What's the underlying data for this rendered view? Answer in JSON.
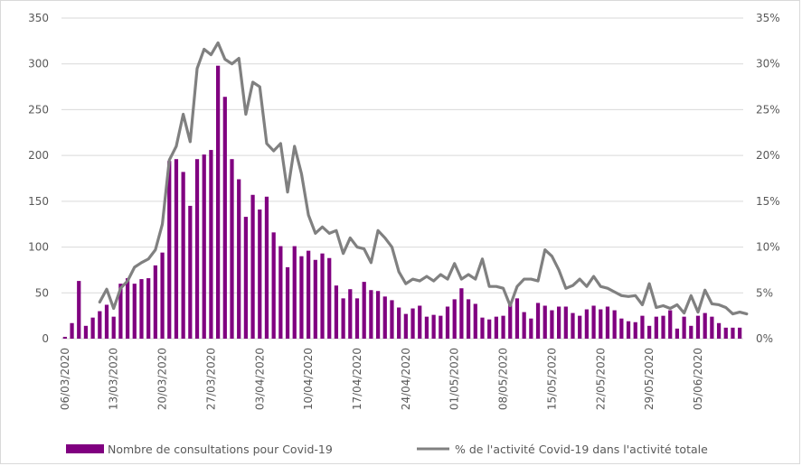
{
  "chart_data": {
    "type": "bar+line",
    "title": "",
    "colors": {
      "bars": "#800080",
      "line": "#808080",
      "grid": "#d9d9d9",
      "text": "#595959"
    },
    "grid": true,
    "legend_position": "bottom",
    "y_left": {
      "min": 0,
      "max": 350,
      "ticks": [
        "0",
        "50",
        "100",
        "150",
        "200",
        "250",
        "300",
        "350"
      ]
    },
    "y_right": {
      "min": 0,
      "max": 0.35,
      "ticks": [
        "0%",
        "5%",
        "10%",
        "15%",
        "20%",
        "25%",
        "30%",
        "35%"
      ]
    },
    "x_tick_labels": [
      "06/03/2020",
      "13/03/2020",
      "20/03/2020",
      "27/03/2020",
      "03/04/2020",
      "10/04/2020",
      "17/04/2020",
      "24/04/2020",
      "01/05/2020",
      "08/05/2020",
      "15/05/2020",
      "22/05/2020",
      "29/05/2020",
      "05/06/2020"
    ],
    "series": [
      {
        "name": "Nombre de consultations pour Covid-19",
        "type": "bar",
        "axis": "left",
        "values": [
          2,
          17,
          63,
          14,
          23,
          30,
          37,
          24,
          60,
          66,
          60,
          65,
          66,
          80,
          94,
          194,
          196,
          182,
          145,
          196,
          201,
          206,
          298,
          264,
          196,
          174,
          133,
          157,
          141,
          155,
          116,
          101,
          78,
          101,
          90,
          96,
          86,
          93,
          88,
          58,
          44,
          54,
          44,
          62,
          53,
          52,
          46,
          42,
          34,
          27,
          33,
          36,
          24,
          26,
          25,
          35,
          43,
          55,
          43,
          38,
          23,
          21,
          24,
          25,
          40,
          44,
          29,
          22,
          39,
          36,
          31,
          35,
          35,
          28,
          25,
          32,
          36,
          32,
          35,
          31,
          22,
          19,
          18,
          25,
          14,
          24,
          25,
          31,
          11,
          24,
          14,
          25,
          28,
          24,
          17,
          12,
          12,
          12
        ]
      },
      {
        "name": "% de l'activité Covid-19 dans l'activité totale",
        "type": "line",
        "axis": "right",
        "start_index": 5,
        "values": [
          0.04,
          0.054,
          0.033,
          0.055,
          0.063,
          0.078,
          0.083,
          0.087,
          0.097,
          0.125,
          0.195,
          0.21,
          0.245,
          0.215,
          0.295,
          0.316,
          0.31,
          0.323,
          0.305,
          0.3,
          0.306,
          0.245,
          0.28,
          0.275,
          0.213,
          0.205,
          0.213,
          0.16,
          0.21,
          0.18,
          0.135,
          0.115,
          0.122,
          0.115,
          0.118,
          0.093,
          0.11,
          0.1,
          0.098,
          0.083,
          0.118,
          0.11,
          0.1,
          0.073,
          0.06,
          0.065,
          0.063,
          0.068,
          0.063,
          0.07,
          0.065,
          0.082,
          0.065,
          0.07,
          0.065,
          0.087,
          0.057,
          0.057,
          0.055,
          0.036,
          0.057,
          0.065,
          0.065,
          0.063,
          0.097,
          0.09,
          0.075,
          0.055,
          0.058,
          0.065,
          0.057,
          0.068,
          0.057,
          0.055,
          0.051,
          0.047,
          0.046,
          0.047,
          0.037,
          0.06,
          0.034,
          0.036,
          0.033,
          0.037,
          0.028,
          0.047,
          0.029,
          0.053,
          0.038,
          0.037,
          0.034,
          0.027,
          0.029,
          0.027
        ]
      }
    ]
  }
}
